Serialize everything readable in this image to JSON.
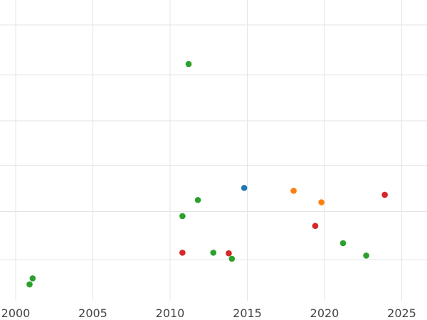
{
  "chart_data": {
    "type": "scatter",
    "title": "",
    "xlabel": "",
    "ylabel": "",
    "xlim": [
      1999,
      2026.8
    ],
    "ylim": [
      0,
      100
    ],
    "grid": true,
    "legend": "none",
    "x_ticks": [
      2000,
      2005,
      2010,
      2015,
      2020,
      2025
    ],
    "x_tick_labels": [
      "2000",
      "2005",
      "2010",
      "2015",
      "2020",
      "2025"
    ],
    "y_gridlines": [
      14.3,
      31.0,
      47.0,
      62.5,
      78.5,
      95.8
    ],
    "series": [
      {
        "color": "#1f77b4",
        "points": [
          {
            "x": 2014.8,
            "y": 39.2
          }
        ]
      },
      {
        "color": "#ff7f0e",
        "points": [
          {
            "x": 2018.0,
            "y": 38.2
          },
          {
            "x": 2019.8,
            "y": 34.2
          }
        ]
      },
      {
        "color": "#2ca02c",
        "points": [
          {
            "x": 2000.9,
            "y": 5.7
          },
          {
            "x": 2001.1,
            "y": 7.8
          },
          {
            "x": 2010.8,
            "y": 29.4
          },
          {
            "x": 2011.2,
            "y": 82.2
          },
          {
            "x": 2011.8,
            "y": 35.0
          },
          {
            "x": 2012.8,
            "y": 16.7
          },
          {
            "x": 2014.0,
            "y": 14.6
          },
          {
            "x": 2021.2,
            "y": 20.0
          },
          {
            "x": 2022.7,
            "y": 15.7
          }
        ]
      },
      {
        "color": "#d62728",
        "points": [
          {
            "x": 2010.8,
            "y": 16.7
          },
          {
            "x": 2013.8,
            "y": 16.5
          },
          {
            "x": 2019.4,
            "y": 26.0
          },
          {
            "x": 2023.9,
            "y": 36.8
          }
        ]
      }
    ]
  }
}
